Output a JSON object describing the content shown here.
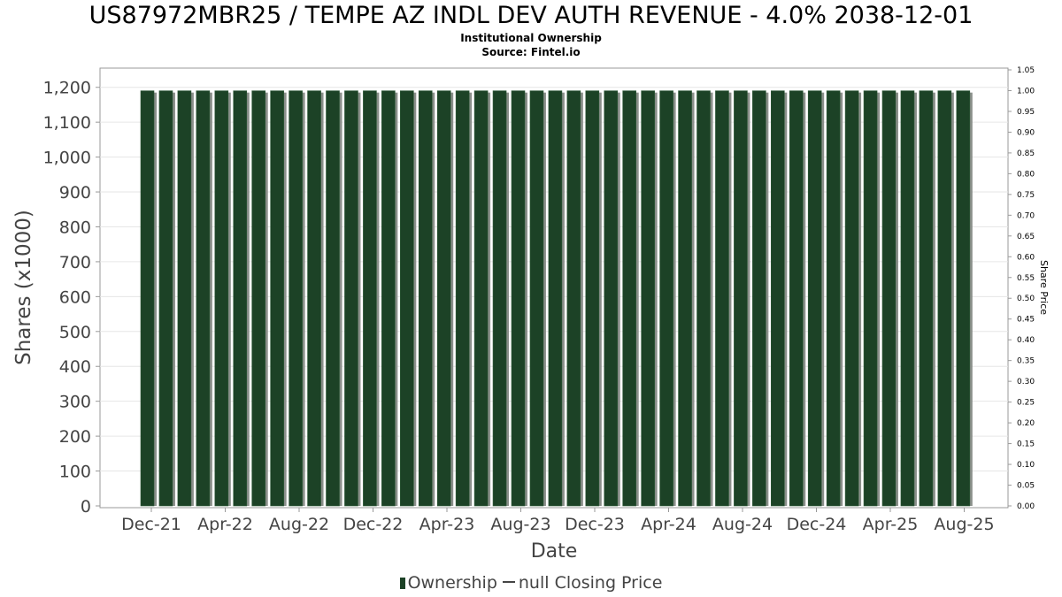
{
  "title": "US87972MBR25 / TEMPE AZ INDL DEV AUTH REVENUE - 4.0% 2038-12-01",
  "subtitle_1": "Institutional Ownership",
  "subtitle_2": "Source: Fintel.io",
  "legend": {
    "ownership": "Ownership",
    "closing_price": "null Closing Price"
  },
  "colors": {
    "bar": "#1c4226",
    "bar_shadow": "#8a8f8a",
    "grid": "#e6e6e6"
  },
  "chart_data": {
    "type": "bar",
    "xlabel": "Date",
    "ylabel": "Shares (x1000)",
    "y2label": "Share Price",
    "ylim": [
      0,
      1250
    ],
    "y2lim": [
      0,
      1.05
    ],
    "yticks": [
      0,
      100,
      200,
      300,
      400,
      500,
      600,
      700,
      800,
      900,
      1000,
      1100,
      1200
    ],
    "yticklabels": [
      "0",
      "100",
      "200",
      "300",
      "400",
      "500",
      "600",
      "700",
      "800",
      "900",
      "1,000",
      "1,100",
      "1,200"
    ],
    "y2ticklabels": [
      "0.00",
      "0.05",
      "0.10",
      "0.15",
      "0.20",
      "0.25",
      "0.30",
      "0.35",
      "0.40",
      "0.45",
      "0.50",
      "0.55",
      "0.60",
      "0.65",
      "0.70",
      "0.75",
      "0.80",
      "0.85",
      "0.90",
      "0.95",
      "1.00",
      "1.05"
    ],
    "xticklabels": [
      "Dec-21",
      "Apr-22",
      "Aug-22",
      "Dec-22",
      "Apr-23",
      "Aug-23",
      "Dec-23",
      "Apr-24",
      "Aug-24",
      "Dec-24",
      "Apr-25",
      "Aug-25"
    ],
    "series": [
      {
        "name": "Ownership",
        "values": [
          1190,
          1190,
          1190,
          1190,
          1190,
          1190,
          1190,
          1190,
          1190,
          1190,
          1190,
          1190,
          1190,
          1190,
          1190,
          1190,
          1190,
          1190,
          1190,
          1190,
          1190,
          1190,
          1190,
          1190,
          1190,
          1190,
          1190,
          1190,
          1190,
          1190,
          1190,
          1190,
          1190,
          1190,
          1190,
          1190,
          1190,
          1190,
          1190,
          1190,
          1190,
          1190,
          1190,
          1190,
          1190
        ]
      }
    ]
  }
}
